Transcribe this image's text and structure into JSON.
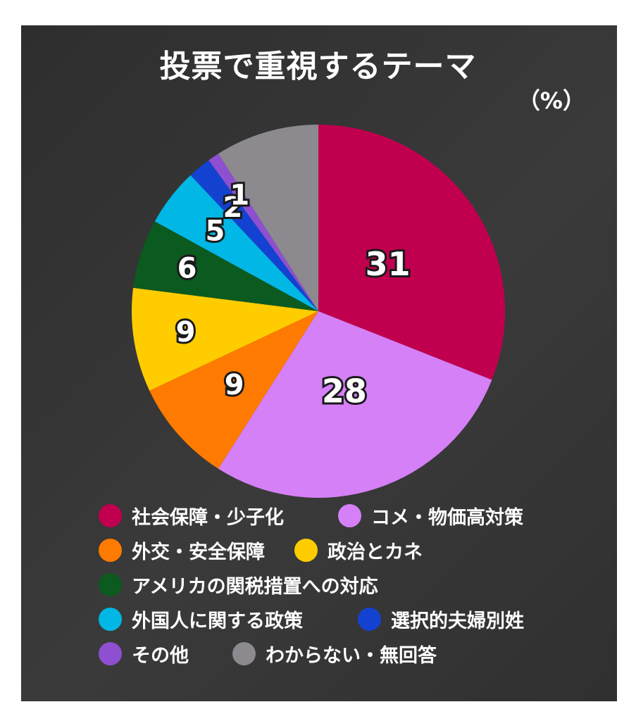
{
  "chart_data": {
    "type": "pie",
    "title": "投票で重視するテーマ",
    "unit": "（%）",
    "slices": [
      {
        "label": "社会保障・少子化",
        "value": 31,
        "value_label": "31",
        "color": "#C0004E"
      },
      {
        "label": "コメ・物価高対策",
        "value": 28,
        "value_label": "28",
        "color": "#D580F7"
      },
      {
        "label": "外交・安全保障",
        "value": 9,
        "value_label": "9",
        "color": "#FF7A00"
      },
      {
        "label": "政治とカネ",
        "value": 9,
        "value_label": "9",
        "color": "#FFCC00"
      },
      {
        "label": "アメリカの関税措置への対応",
        "value": 6,
        "value_label": "6",
        "color": "#0B5A1F"
      },
      {
        "label": "外国人に関する政策",
        "value": 5,
        "value_label": "5",
        "color": "#00B7E6"
      },
      {
        "label": "選択的夫婦別姓",
        "value": 2,
        "value_label": "2",
        "color": "#1442D0"
      },
      {
        "label": "その他",
        "value": 1,
        "value_label": "1",
        "color": "#8E4FD0"
      },
      {
        "label": "わからない・無回答",
        "value": 9,
        "value_label": "",
        "color": "#8C8A8E"
      }
    ],
    "start": "12 o'clock",
    "direction": "clockwise",
    "legend_position": "bottom"
  }
}
